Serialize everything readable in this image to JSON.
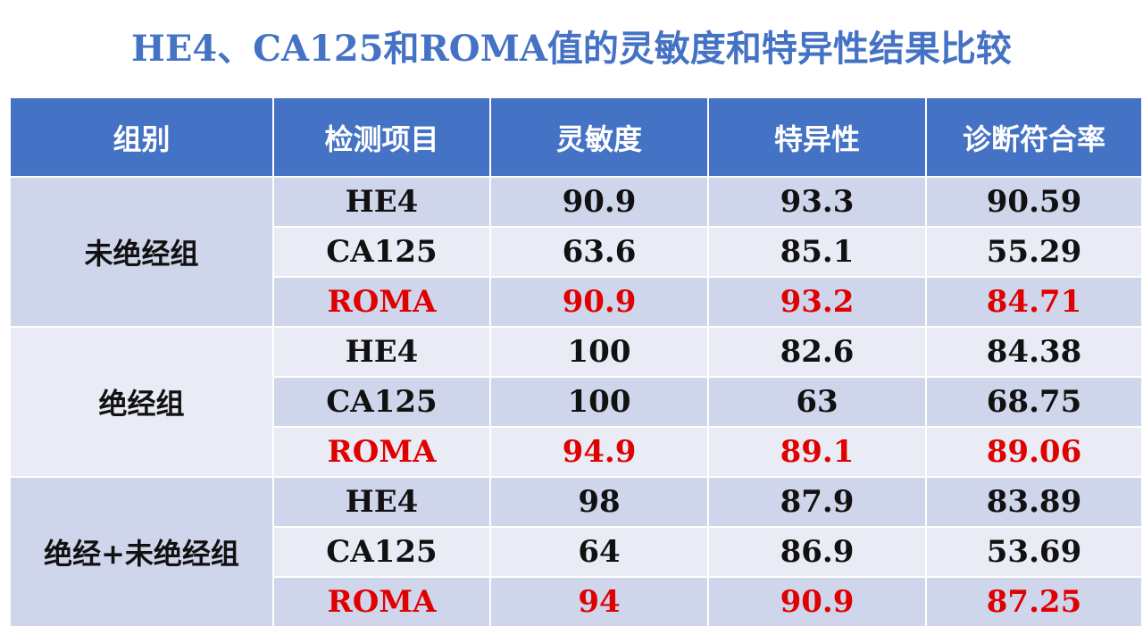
{
  "title": "HE4、CA125和ROMA值的灵敏度和特异性结果比较",
  "highlight_color": "#E00000",
  "header_color": "#4472C4",
  "columns": [
    "组别",
    "检测项目",
    "灵敏度",
    "特异性",
    "诊断符合率"
  ],
  "groups": [
    {
      "name": "未绝经组",
      "rows": [
        {
          "item": "HE4",
          "sensitivity": "90.9",
          "specificity": "93.3",
          "accuracy": "90.59"
        },
        {
          "item": "CA125",
          "sensitivity": "63.6",
          "specificity": "85.1",
          "accuracy": "55.29"
        },
        {
          "item": "ROMA",
          "sensitivity": "90.9",
          "specificity": "93.2",
          "accuracy": "84.71"
        }
      ]
    },
    {
      "name": "绝经组",
      "rows": [
        {
          "item": "HE4",
          "sensitivity": "100",
          "specificity": "82.6",
          "accuracy": "84.38"
        },
        {
          "item": "CA125",
          "sensitivity": "100",
          "specificity": "63",
          "accuracy": "68.75"
        },
        {
          "item": "ROMA",
          "sensitivity": "94.9",
          "specificity": "89.1",
          "accuracy": "89.06"
        }
      ]
    },
    {
      "name": "绝经+未绝经组",
      "rows": [
        {
          "item": "HE4",
          "sensitivity": "98",
          "specificity": "87.9",
          "accuracy": "83.89"
        },
        {
          "item": "CA125",
          "sensitivity": "64",
          "specificity": "86.9",
          "accuracy": "53.69"
        },
        {
          "item": "ROMA",
          "sensitivity": "94",
          "specificity": "90.9",
          "accuracy": "87.25"
        }
      ]
    }
  ]
}
